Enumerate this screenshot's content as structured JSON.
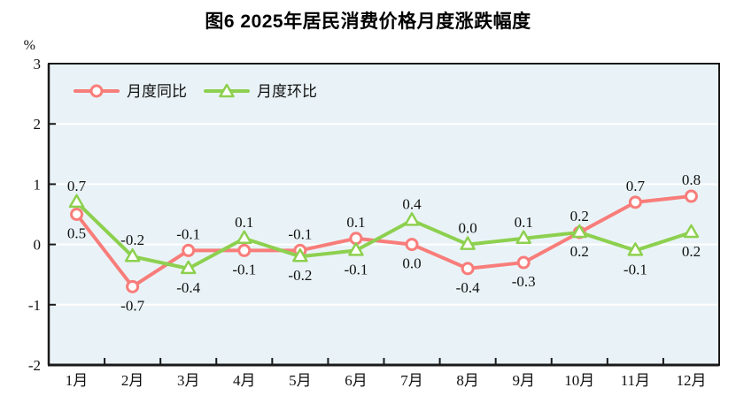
{
  "chart_data": {
    "type": "line",
    "title": "图6  2025年居民消费价格月度涨跌幅度",
    "ylabel": "%",
    "xlabel": "",
    "ylim": [
      -2,
      3
    ],
    "yticks": [
      3,
      2,
      1,
      0,
      -1,
      -2
    ],
    "grid": true,
    "legend_position": "top-left-inside",
    "plot_bg": "#e9f3f7",
    "grid_color": "#ffffff",
    "axis_color": "#1a1a1a",
    "categories": [
      "1月",
      "2月",
      "3月",
      "4月",
      "5月",
      "6月",
      "7月",
      "8月",
      "9月",
      "10月",
      "11月",
      "12月"
    ],
    "series": [
      {
        "name": "月度同比",
        "marker": "circle",
        "color": "#f87d7a",
        "values": [
          0.5,
          -0.7,
          -0.1,
          -0.1,
          -0.1,
          0.1,
          0.0,
          -0.4,
          -0.3,
          0.2,
          0.7,
          0.8
        ],
        "label_positions": [
          "below",
          "below",
          "above",
          "below",
          "above",
          "above",
          "below",
          "below",
          "below",
          "above",
          "above",
          "above"
        ]
      },
      {
        "name": "月度环比",
        "marker": "triangle",
        "color": "#8dd04f",
        "values": [
          0.7,
          -0.2,
          -0.4,
          0.1,
          -0.2,
          -0.1,
          0.4,
          0.0,
          0.1,
          0.2,
          -0.1,
          0.2
        ],
        "label_positions": [
          "above",
          "above",
          "below",
          "above",
          "below",
          "below",
          "above",
          "above",
          "above",
          "below",
          "below",
          "below"
        ]
      }
    ]
  }
}
